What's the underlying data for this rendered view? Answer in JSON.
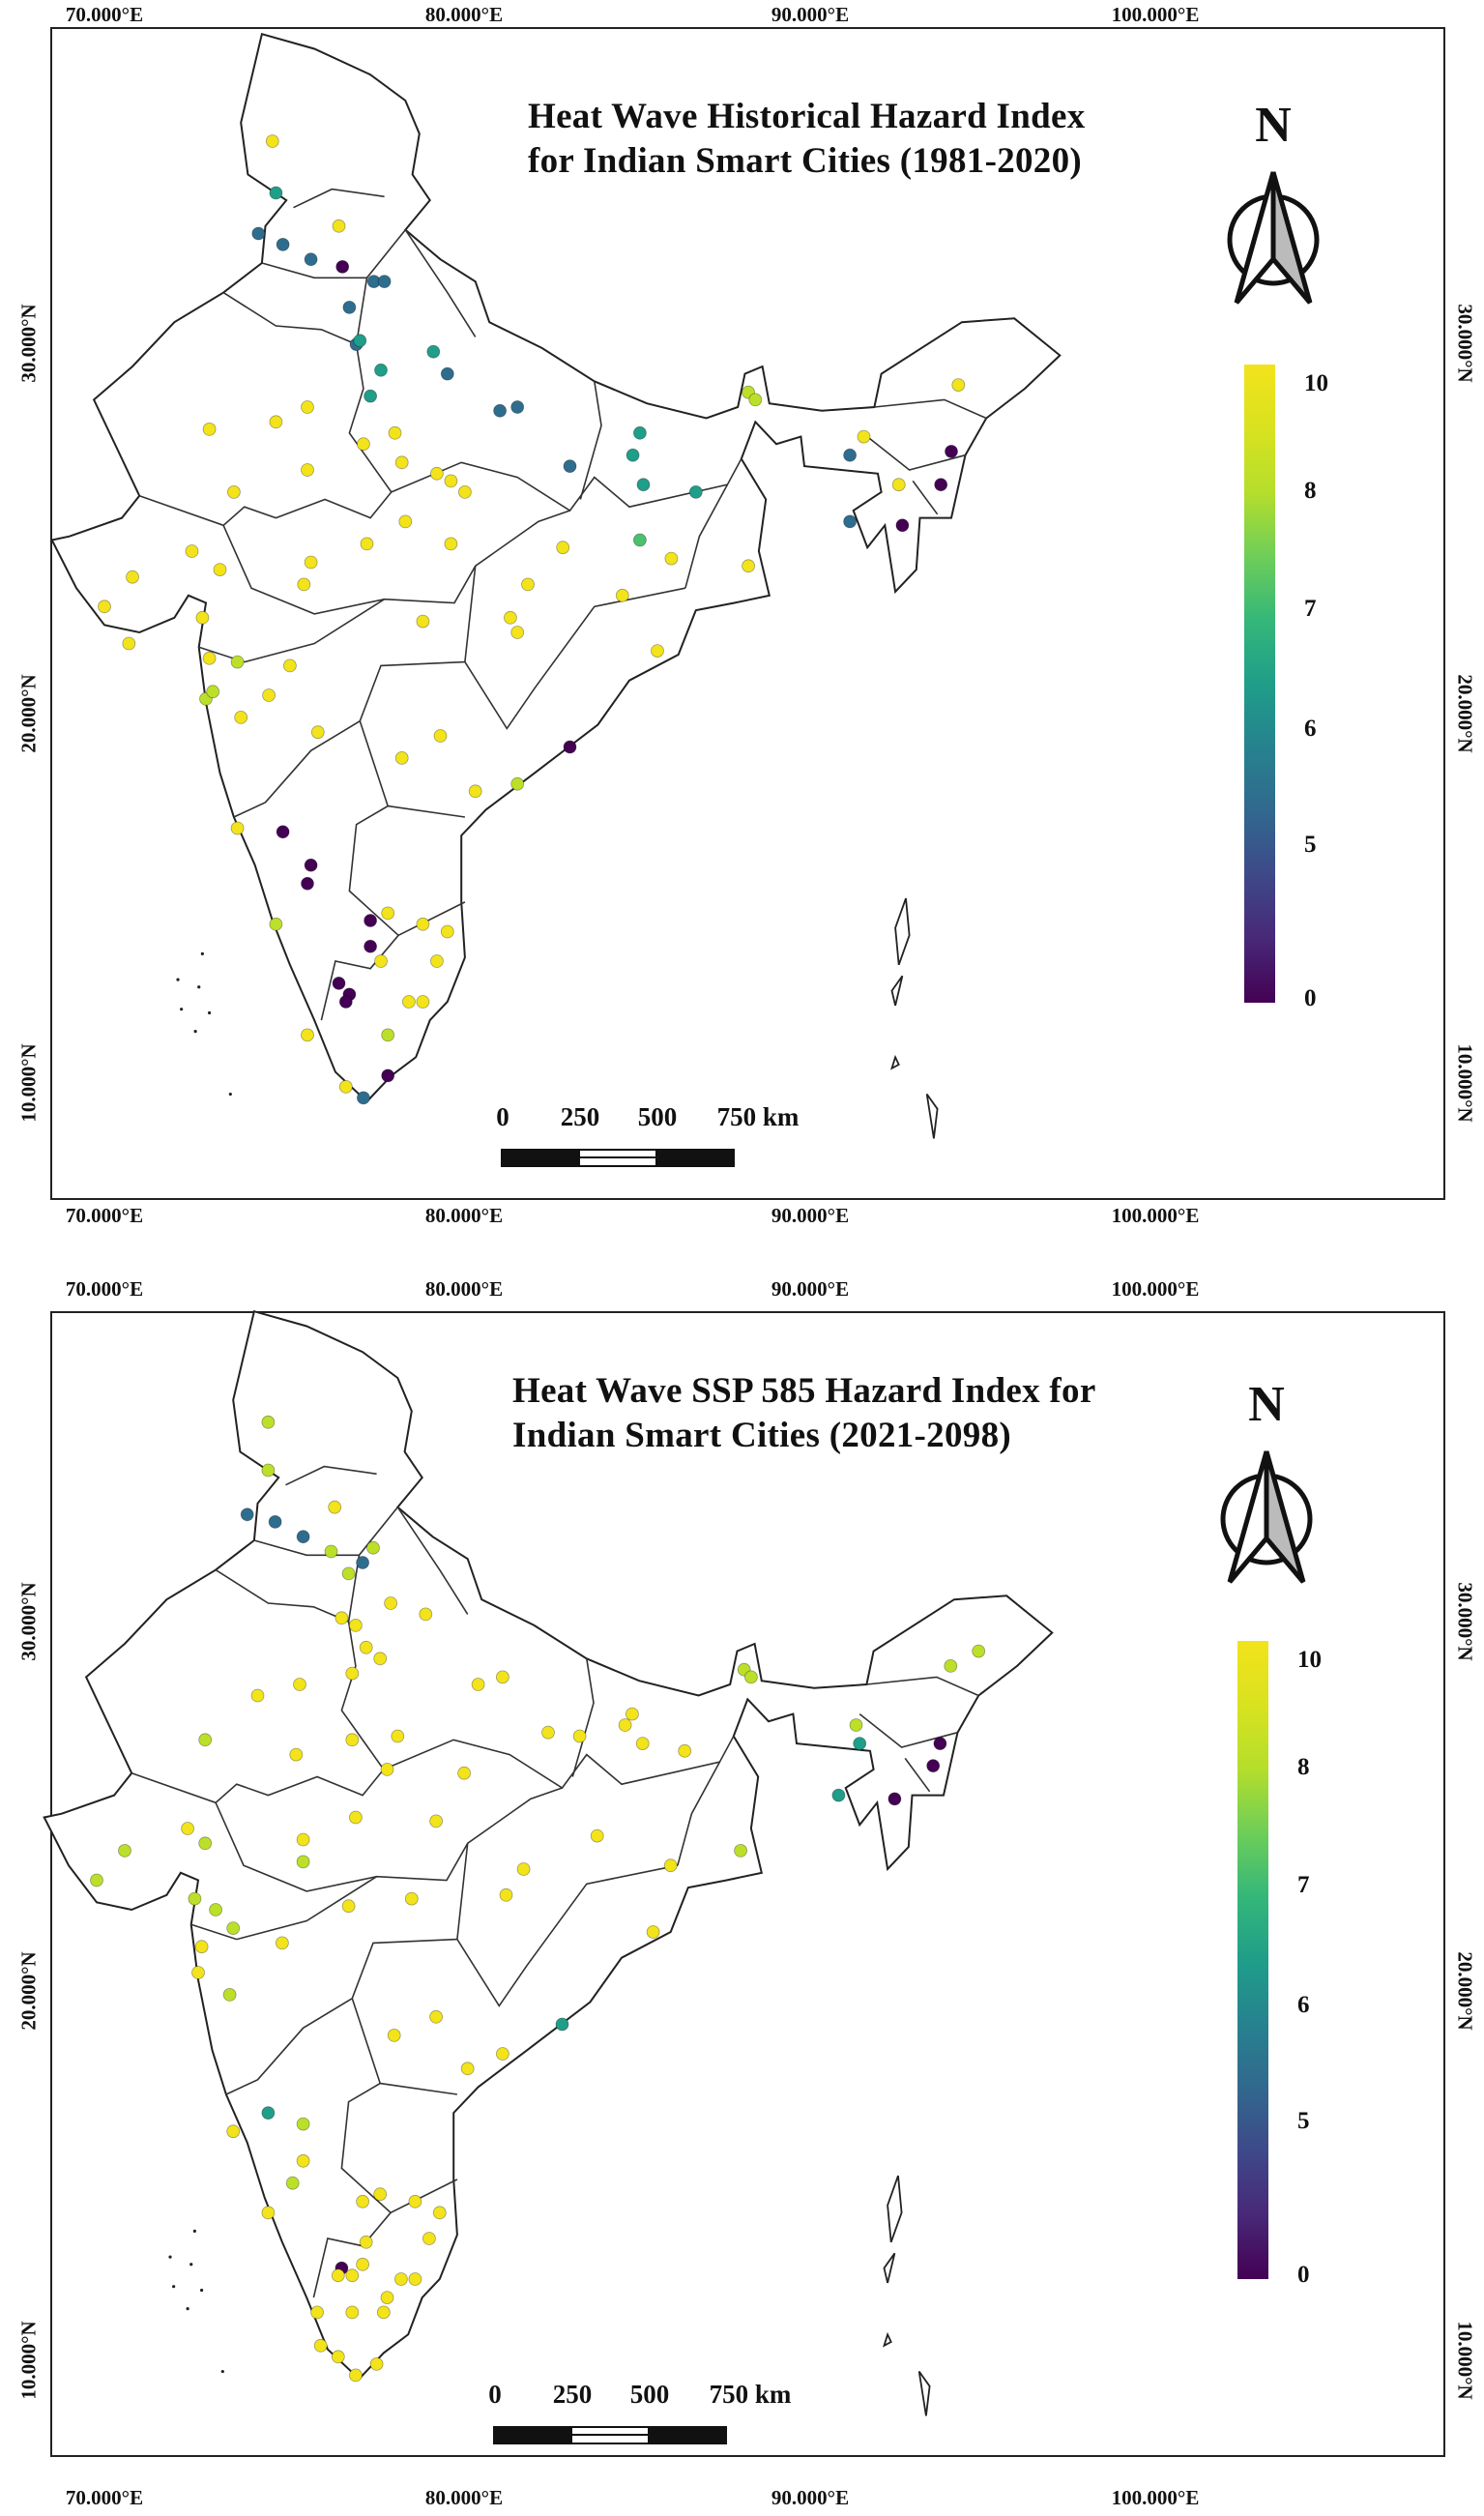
{
  "panels": [
    {
      "id": "historical",
      "title_line1": "Heat Wave Historical Hazard Index",
      "title_line2": "for Indian Smart Cities (1981-2020)",
      "lon_labels": [
        "70.000°E",
        "80.000°E",
        "90.000°E",
        "100.000°E"
      ],
      "lat_labels": [
        "30.000°N",
        "20.000°N",
        "10.000°N"
      ],
      "north_label": "N",
      "legend_ticks": [
        "10",
        "8",
        "7",
        "6",
        "5",
        "0"
      ],
      "scale_labels": [
        "0",
        "250",
        "500",
        "750 km"
      ],
      "cities": [
        [
          74.8,
          34.1,
          10
        ],
        [
          74.9,
          32.7,
          6
        ],
        [
          74.4,
          31.6,
          5
        ],
        [
          75.1,
          31.3,
          5
        ],
        [
          75.9,
          30.9,
          5
        ],
        [
          76.7,
          31.8,
          10
        ],
        [
          76.8,
          30.7,
          0
        ],
        [
          77.2,
          28.6,
          5
        ],
        [
          77.0,
          29.6,
          5
        ],
        [
          77.7,
          30.3,
          5
        ],
        [
          78.0,
          30.3,
          5
        ],
        [
          79.4,
          28.4,
          6
        ],
        [
          79.8,
          27.8,
          5
        ],
        [
          77.6,
          27.2,
          6
        ],
        [
          77.9,
          27.9,
          6
        ],
        [
          77.3,
          28.7,
          6
        ],
        [
          81.3,
          26.8,
          5
        ],
        [
          81.8,
          26.9,
          5
        ],
        [
          83.3,
          25.3,
          5
        ],
        [
          85.1,
          25.6,
          6
        ],
        [
          85.3,
          26.2,
          6
        ],
        [
          85.4,
          24.8,
          6
        ],
        [
          86.9,
          24.6,
          6
        ],
        [
          88.4,
          27.3,
          8
        ],
        [
          88.6,
          27.1,
          8
        ],
        [
          91.7,
          26.1,
          10
        ],
        [
          94.4,
          27.5,
          10
        ],
        [
          92.7,
          24.8,
          10
        ],
        [
          91.3,
          25.6,
          5
        ],
        [
          93.9,
          24.8,
          0
        ],
        [
          94.2,
          25.7,
          0
        ],
        [
          92.8,
          23.7,
          0
        ],
        [
          91.3,
          23.8,
          5
        ],
        [
          74.9,
          26.5,
          10
        ],
        [
          75.8,
          26.9,
          10
        ],
        [
          73.0,
          26.3,
          10
        ],
        [
          75.8,
          25.2,
          10
        ],
        [
          73.7,
          24.6,
          10
        ],
        [
          77.4,
          25.9,
          10
        ],
        [
          78.3,
          26.2,
          10
        ],
        [
          79.5,
          25.1,
          10
        ],
        [
          78.5,
          25.4,
          10
        ],
        [
          79.9,
          24.9,
          10
        ],
        [
          80.3,
          24.6,
          10
        ],
        [
          72.5,
          23.0,
          10
        ],
        [
          73.3,
          22.5,
          10
        ],
        [
          72.8,
          21.2,
          10
        ],
        [
          70.8,
          22.3,
          10
        ],
        [
          70.0,
          21.5,
          10
        ],
        [
          70.7,
          20.5,
          10
        ],
        [
          75.9,
          22.7,
          10
        ],
        [
          75.7,
          22.1,
          10
        ],
        [
          77.5,
          23.2,
          10
        ],
        [
          78.6,
          23.8,
          10
        ],
        [
          79.9,
          23.2,
          10
        ],
        [
          83.1,
          23.1,
          10
        ],
        [
          85.3,
          23.3,
          7
        ],
        [
          86.2,
          22.8,
          10
        ],
        [
          88.4,
          22.6,
          10
        ],
        [
          81.6,
          21.2,
          10
        ],
        [
          82.1,
          22.1,
          10
        ],
        [
          85.8,
          20.3,
          10
        ],
        [
          84.8,
          21.8,
          10
        ],
        [
          79.1,
          21.1,
          10
        ],
        [
          81.8,
          20.8,
          10
        ],
        [
          75.3,
          19.9,
          10
        ],
        [
          73.8,
          20.0,
          8
        ],
        [
          72.9,
          19.0,
          8
        ],
        [
          73.1,
          19.2,
          8
        ],
        [
          73.9,
          18.5,
          10
        ],
        [
          73.0,
          20.1,
          10
        ],
        [
          74.7,
          19.1,
          10
        ],
        [
          76.1,
          18.1,
          10
        ],
        [
          78.5,
          17.4,
          10
        ],
        [
          79.6,
          18.0,
          10
        ],
        [
          80.6,
          16.5,
          10
        ],
        [
          81.8,
          16.7,
          8
        ],
        [
          83.3,
          17.7,
          0
        ],
        [
          73.8,
          15.5,
          10
        ],
        [
          75.1,
          15.4,
          0
        ],
        [
          75.9,
          14.5,
          0
        ],
        [
          75.8,
          14.0,
          0
        ],
        [
          74.9,
          12.9,
          8
        ],
        [
          77.6,
          13.0,
          0
        ],
        [
          77.6,
          12.3,
          0
        ],
        [
          78.1,
          13.2,
          10
        ],
        [
          79.1,
          12.9,
          10
        ],
        [
          79.8,
          12.7,
          10
        ],
        [
          79.5,
          11.9,
          10
        ],
        [
          77.0,
          11.0,
          0
        ],
        [
          76.7,
          11.3,
          0
        ],
        [
          76.9,
          10.8,
          0
        ],
        [
          78.7,
          10.8,
          10
        ],
        [
          79.1,
          10.8,
          10
        ],
        [
          75.8,
          9.9,
          10
        ],
        [
          78.1,
          9.9,
          8
        ],
        [
          76.9,
          8.5,
          10
        ],
        [
          77.4,
          8.2,
          5
        ],
        [
          78.1,
          8.8,
          0
        ],
        [
          77.9,
          11.9,
          10
        ]
      ]
    },
    {
      "id": "ssp585",
      "title_line1": "Heat Wave SSP 585 Hazard Index for",
      "title_line2": "Indian Smart Cities (2021-2098)",
      "lon_labels": [
        "70.000°E",
        "80.000°E",
        "90.000°E",
        "100.000°E"
      ],
      "lat_labels": [
        "30.000°N",
        "20.000°N",
        "10.000°N"
      ],
      "north_label": "N",
      "legend_ticks": [
        "10",
        "8",
        "7",
        "6",
        "5",
        "0"
      ],
      "scale_labels": [
        "0",
        "250",
        "500",
        "750 km"
      ],
      "cities": [
        [
          74.9,
          34.0,
          8
        ],
        [
          74.9,
          32.7,
          8
        ],
        [
          74.3,
          31.5,
          5
        ],
        [
          75.1,
          31.3,
          5
        ],
        [
          75.9,
          30.9,
          5
        ],
        [
          76.8,
          31.7,
          10
        ],
        [
          76.7,
          30.5,
          8
        ],
        [
          77.6,
          30.2,
          5
        ],
        [
          77.9,
          30.6,
          8
        ],
        [
          77.2,
          29.9,
          8
        ],
        [
          77.0,
          28.7,
          10
        ],
        [
          77.4,
          28.5,
          10
        ],
        [
          78.4,
          29.1,
          10
        ],
        [
          79.4,
          28.8,
          10
        ],
        [
          77.7,
          27.9,
          10
        ],
        [
          77.3,
          27.2,
          10
        ],
        [
          78.1,
          27.6,
          10
        ],
        [
          80.9,
          26.9,
          10
        ],
        [
          81.6,
          27.1,
          10
        ],
        [
          82.9,
          25.6,
          10
        ],
        [
          83.8,
          25.5,
          10
        ],
        [
          85.3,
          26.1,
          10
        ],
        [
          85.1,
          25.8,
          10
        ],
        [
          85.6,
          25.3,
          10
        ],
        [
          86.8,
          25.1,
          10
        ],
        [
          88.5,
          27.3,
          8
        ],
        [
          88.7,
          27.1,
          8
        ],
        [
          91.7,
          25.8,
          8
        ],
        [
          91.8,
          25.3,
          6
        ],
        [
          94.4,
          27.4,
          8
        ],
        [
          95.2,
          27.8,
          8
        ],
        [
          93.9,
          24.7,
          0
        ],
        [
          94.1,
          25.3,
          0
        ],
        [
          92.8,
          23.8,
          0
        ],
        [
          91.2,
          23.9,
          6
        ],
        [
          74.6,
          26.6,
          10
        ],
        [
          75.8,
          26.9,
          10
        ],
        [
          73.1,
          25.4,
          8
        ],
        [
          75.7,
          25.0,
          10
        ],
        [
          77.3,
          25.4,
          10
        ],
        [
          78.6,
          25.5,
          10
        ],
        [
          78.3,
          24.6,
          10
        ],
        [
          80.5,
          24.5,
          10
        ],
        [
          72.6,
          23.0,
          10
        ],
        [
          73.1,
          22.6,
          8
        ],
        [
          70.8,
          22.4,
          8
        ],
        [
          70.0,
          21.6,
          8
        ],
        [
          72.8,
          21.1,
          8
        ],
        [
          75.9,
          22.7,
          10
        ],
        [
          75.9,
          22.1,
          8
        ],
        [
          77.4,
          23.3,
          10
        ],
        [
          79.7,
          23.2,
          10
        ],
        [
          84.3,
          22.8,
          10
        ],
        [
          86.4,
          22.0,
          10
        ],
        [
          88.4,
          22.4,
          8
        ],
        [
          81.7,
          21.2,
          10
        ],
        [
          82.2,
          21.9,
          10
        ],
        [
          79.0,
          21.1,
          10
        ],
        [
          77.2,
          20.9,
          10
        ],
        [
          73.4,
          20.8,
          8
        ],
        [
          73.9,
          20.3,
          8
        ],
        [
          73.0,
          19.8,
          10
        ],
        [
          72.9,
          19.1,
          10
        ],
        [
          73.8,
          18.5,
          8
        ],
        [
          75.3,
          19.9,
          10
        ],
        [
          85.9,
          20.2,
          10
        ],
        [
          78.5,
          17.4,
          10
        ],
        [
          79.7,
          17.9,
          10
        ],
        [
          83.3,
          17.7,
          6
        ],
        [
          80.6,
          16.5,
          10
        ],
        [
          81.6,
          16.9,
          10
        ],
        [
          74.9,
          15.3,
          6
        ],
        [
          75.9,
          15.0,
          8
        ],
        [
          73.9,
          14.8,
          10
        ],
        [
          75.9,
          14.0,
          10
        ],
        [
          75.6,
          13.4,
          8
        ],
        [
          77.6,
          12.9,
          10
        ],
        [
          74.9,
          12.6,
          10
        ],
        [
          78.1,
          13.1,
          10
        ],
        [
          79.1,
          12.9,
          10
        ],
        [
          79.8,
          12.6,
          10
        ],
        [
          79.5,
          11.9,
          10
        ],
        [
          77.0,
          11.1,
          0
        ],
        [
          77.3,
          10.9,
          10
        ],
        [
          77.6,
          11.2,
          10
        ],
        [
          76.9,
          10.9,
          10
        ],
        [
          78.3,
          10.3,
          10
        ],
        [
          78.7,
          10.8,
          10
        ],
        [
          79.1,
          10.8,
          10
        ],
        [
          76.3,
          9.9,
          10
        ],
        [
          77.3,
          9.9,
          10
        ],
        [
          78.2,
          9.9,
          10
        ],
        [
          76.9,
          8.7,
          10
        ],
        [
          77.4,
          8.2,
          10
        ],
        [
          78.0,
          8.5,
          10
        ],
        [
          76.4,
          9.0,
          10
        ],
        [
          77.7,
          11.8,
          10
        ]
      ]
    }
  ]
}
